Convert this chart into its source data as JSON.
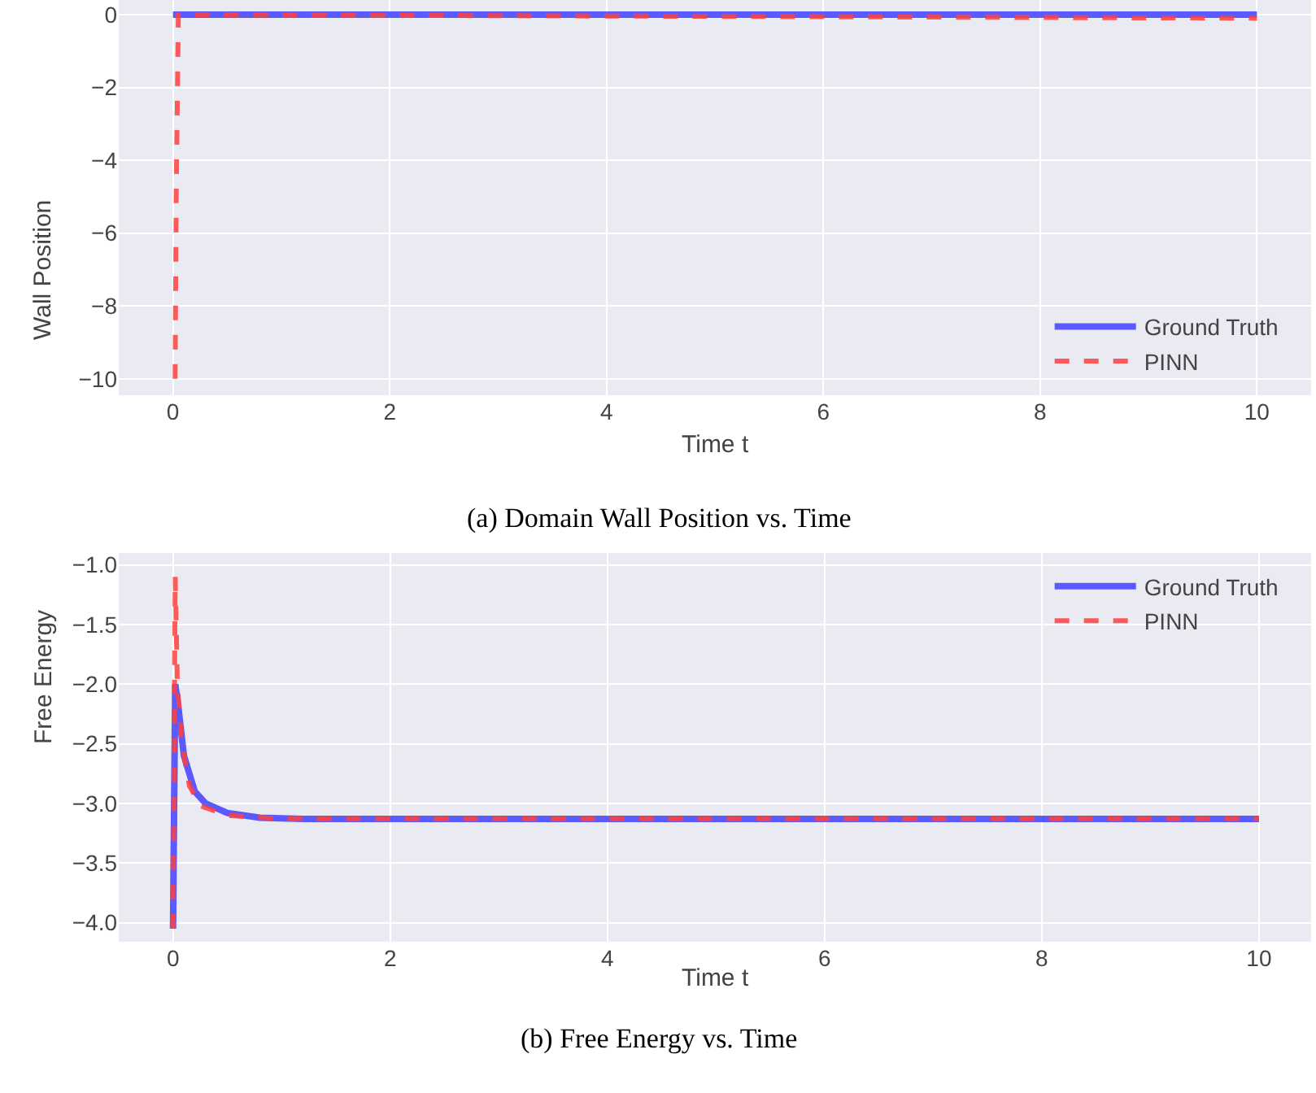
{
  "chart_data": [
    {
      "type": "line",
      "title": "(a) Domain Wall Position vs. Time",
      "xlabel": "Time t",
      "ylabel": "Wall Position",
      "xlim": [
        -0.5,
        10.5
      ],
      "xticks": [
        0,
        2,
        4,
        6,
        8,
        10
      ],
      "ylim": [
        -10.45,
        0.4
      ],
      "yticks": [
        {
          "value": 0,
          "label": "0"
        },
        {
          "value": -2,
          "label": "−2"
        },
        {
          "value": -4,
          "label": "−4"
        },
        {
          "value": -6,
          "label": "−6"
        },
        {
          "value": -8,
          "label": "−8"
        },
        {
          "value": -10,
          "label": "−10"
        }
      ],
      "grid": true,
      "legend": "bottom right",
      "series": [
        {
          "name": "Ground Truth",
          "color": "#4040ff",
          "line_style": "solid",
          "x": [
            0,
            10
          ],
          "values": [
            0,
            0
          ]
        },
        {
          "name": "PINN",
          "color": "#ff4040",
          "line_style": "dashed",
          "x": [
            0.02,
            0.03,
            0.05,
            10
          ],
          "values": [
            -10,
            -5,
            0,
            -0.1
          ]
        }
      ]
    },
    {
      "type": "line",
      "title": "(b) Free Energy vs. Time",
      "xlabel": "Time t",
      "ylabel": "Free Energy",
      "xlim": [
        -0.5,
        10.48
      ],
      "xticks": [
        0,
        2,
        4,
        6,
        8,
        10
      ],
      "ylim": [
        -4.16,
        -0.9
      ],
      "yticks": [
        {
          "value": -1.0,
          "label": "−1.0"
        },
        {
          "value": -1.5,
          "label": "−1.5"
        },
        {
          "value": -2.0,
          "label": "−2.0"
        },
        {
          "value": -2.5,
          "label": "−2.5"
        },
        {
          "value": -3.0,
          "label": "−3.0"
        },
        {
          "value": -3.5,
          "label": "−3.5"
        },
        {
          "value": -4.0,
          "label": "−4.0"
        }
      ],
      "grid": true,
      "legend": "top right",
      "series": [
        {
          "name": "Ground Truth",
          "color": "#4040ff",
          "line_style": "solid",
          "x": [
            0,
            0.02,
            0.05,
            0.1,
            0.2,
            0.3,
            0.5,
            0.8,
            1.2,
            10
          ],
          "values": [
            -4.05,
            -2.0,
            -2.2,
            -2.6,
            -2.9,
            -3.0,
            -3.08,
            -3.12,
            -3.13,
            -3.13
          ]
        },
        {
          "name": "PINN",
          "color": "#ff4040",
          "line_style": "dashed",
          "x": [
            0,
            0.02,
            0.04,
            0.08,
            0.15,
            0.25,
            0.5,
            1,
            10
          ],
          "values": [
            -4.05,
            -1.1,
            -2.0,
            -2.5,
            -2.85,
            -3.02,
            -3.1,
            -3.13,
            -3.13
          ]
        }
      ]
    }
  ]
}
